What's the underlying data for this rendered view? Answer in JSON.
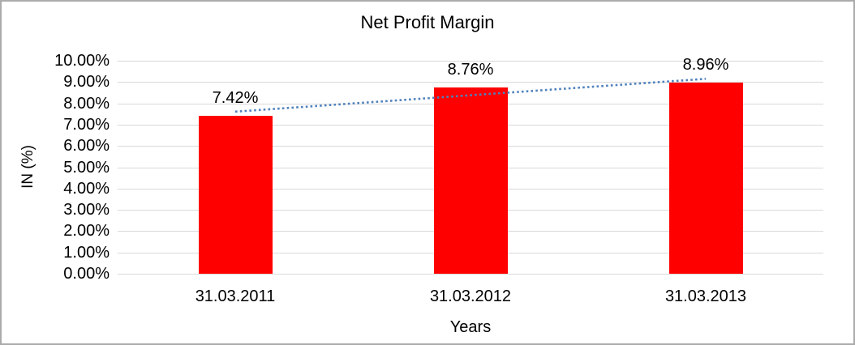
{
  "window": {
    "background": "#ffffff",
    "border_color": "#ababab"
  },
  "chart_data": {
    "type": "bar",
    "title": "Net Profit Margin",
    "categories": [
      "31.03.2011",
      "31.03.2012",
      "31.03.2013"
    ],
    "series": [
      {
        "name": "Net Profit Margin",
        "values": [
          7.42,
          8.76,
          8.96
        ],
        "color": "#ff0000"
      }
    ],
    "data_labels": [
      "7.42%",
      "8.76%",
      "8.96%"
    ],
    "xlabel": "Years",
    "ylabel": "IN (%)",
    "ylim": [
      0,
      10
    ],
    "ytick_step": 1,
    "yticks_top_to_bottom": [
      "10.00%",
      "9.00%",
      "8.00%",
      "7.00%",
      "6.00%",
      "5.00%",
      "4.00%",
      "3.00%",
      "2.00%",
      "1.00%",
      "0.00%"
    ],
    "grid": true,
    "gridline_color": "#d9d9d9",
    "legend": "none",
    "trendline": {
      "type": "linear",
      "style": "dotted",
      "color": "#4f81bd"
    }
  }
}
